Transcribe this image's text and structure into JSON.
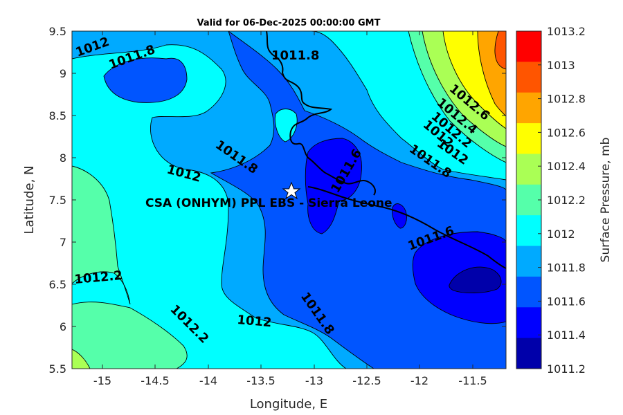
{
  "title": "Valid for 06-Dec-2025 00:00:00 GMT",
  "site_label": "CSA (ONHYM) PPL EBS - Sierra Leone",
  "axes": {
    "xlabel": "Longitude, E",
    "ylabel": "Latitude, N",
    "xticks": [
      "-15",
      "-14.5",
      "-14",
      "-13.5",
      "-13",
      "-12.5",
      "-12",
      "-11.5"
    ],
    "yticks": [
      "9.5",
      "9",
      "8.5",
      "8",
      "7.5",
      "7",
      "6.5",
      "6",
      "5.5"
    ]
  },
  "colorbar": {
    "label": "Surface Pressure, mb",
    "levels": [
      "1013.2",
      "1013",
      "1012.8",
      "1012.6",
      "1012.4",
      "1012.2",
      "1012",
      "1011.8",
      "1011.6",
      "1011.4",
      "1011.2"
    ],
    "colors": [
      "#ff0000",
      "#ff5500",
      "#ffa500",
      "#ffff00",
      "#aaff55",
      "#55ffaa",
      "#00ffff",
      "#00aaff",
      "#0055ff",
      "#0000ff",
      "#0000aa"
    ]
  },
  "contour_labels": [
    "1012",
    "1011.8",
    "1011.8",
    "1011.8",
    "1012",
    "1011.8",
    "1012",
    "1011.6",
    "1012.6",
    "1012.4",
    "1012.2",
    "1012",
    "1011.6",
    "1012.2",
    "1012.2",
    "1012",
    "1011.8"
  ],
  "chart_data": {
    "type": "heatmap",
    "title": "Valid for 06-Dec-2025 00:00:00 GMT",
    "xlabel": "Longitude, E",
    "ylabel": "Latitude, N",
    "xlim": [
      -15.25,
      -11.25
    ],
    "ylim": [
      5.5,
      9.5
    ],
    "colorbar_label": "Surface Pressure, mb",
    "colorbar_range": [
      1011.2,
      1013.2
    ],
    "marker": {
      "name": "CSA (ONHYM) PPL EBS - Sierra Leone",
      "lon": -13.22,
      "lat": 7.6,
      "symbol": "star"
    }
  }
}
